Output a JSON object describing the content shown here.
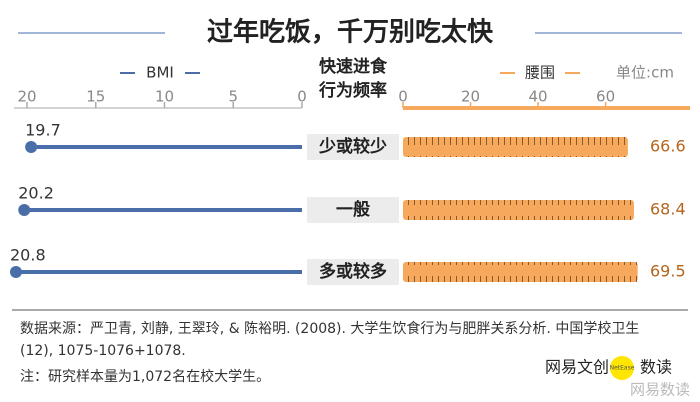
{
  "chart_data": {
    "type": "butterfly",
    "title": "过年吃饭，千万别吃太快",
    "category_label": "快速进食行为频率",
    "categories": [
      "少或较少",
      "一般",
      "多或较多"
    ],
    "unit": "单位:cm",
    "series": [
      {
        "name": "BMI",
        "color": "#4a6fa8",
        "values": [
          19.7,
          20.2,
          20.8
        ],
        "xlim": [
          0,
          20
        ],
        "xticks": [
          0,
          5,
          10,
          15,
          20
        ],
        "reversed": true
      },
      {
        "name": "腰围",
        "color": "#f6a95c",
        "label_color": "#b5651d",
        "values": [
          66.6,
          68.4,
          69.5
        ],
        "xlim": [
          0,
          85
        ],
        "xticks": [
          0,
          20,
          40,
          60
        ],
        "reversed": false
      }
    ]
  },
  "source": "数据来源：严卫青, 刘静, 王翠玲, & 陈裕明. (2008). 大学生饮食行为与肥胖关系分析. 中国学校卫生(12), 1075-1076+1078.",
  "note": "注：研究样本量为1,072名在校大学生。",
  "brand": {
    "left": "网易文创",
    "badge": "NetEase",
    "right": "数读",
    "watermark": "网易数读"
  }
}
